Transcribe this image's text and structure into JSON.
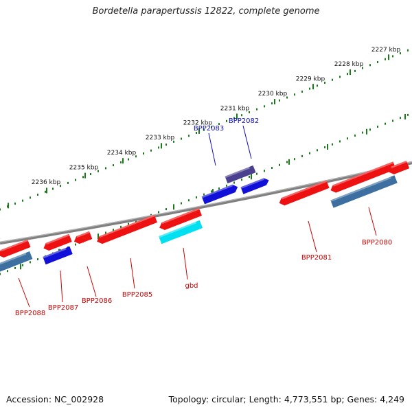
{
  "title": "Bordetella parapertussis 12822, complete genome",
  "footer": {
    "accession": "Accession: NC_002928",
    "summary": "Topology: circular; Length: 4,773,551 bp; Genes: 4,249"
  },
  "ruler_labels": [
    "2227 kbp",
    "2228 kbp",
    "2229 kbp",
    "2230 kbp",
    "2231 kbp",
    "2232 kbp",
    "2233 kbp",
    "2234 kbp",
    "2235 kbp",
    "2236 kbp"
  ],
  "genes": [
    {
      "name": "BPP2082",
      "strand": "+",
      "color": "#1010d8"
    },
    {
      "name": "BPP2083",
      "strand": "+",
      "color": "#1010d8"
    },
    {
      "name": "BPP2080",
      "strand": "-",
      "color": "#ee1111"
    },
    {
      "name": "BPP2081",
      "strand": "-",
      "color": "#ee1111"
    },
    {
      "name": "gbd",
      "strand": "-",
      "color": "#ee1111"
    },
    {
      "name": "BPP2085",
      "strand": "-",
      "color": "#ee1111"
    },
    {
      "name": "BPP2086",
      "strand": "-",
      "color": "#ee1111"
    },
    {
      "name": "BPP2087",
      "strand": "-",
      "color": "#ee1111"
    },
    {
      "name": "BPP2088",
      "strand": "-",
      "color": "#ee1111"
    }
  ],
  "colors": {
    "forward_label": "#1010c0",
    "reverse_label": "#cc0000",
    "cds_forward": "#1010d8",
    "cds_reverse": "#ee1111",
    "rna_dark": "#4b3f8f",
    "rna_steel": "#3d70a0",
    "cyan_feature": "#00e0f0",
    "ruler": "#1a7a1a",
    "backbone": "#808080"
  }
}
